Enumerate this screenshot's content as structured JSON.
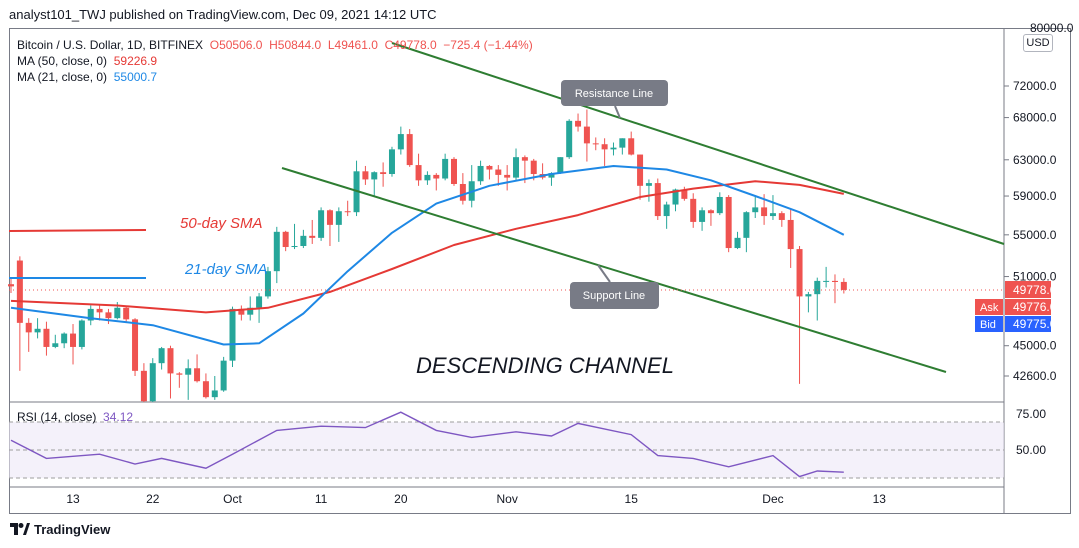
{
  "header": {
    "published": "analyst101_TWJ published on TradingView.com, Dec 09, 2021 14:12 UTC"
  },
  "legend": {
    "symbol": "Bitcoin / U.S. Dollar, 1D, BITFINEX",
    "open": "O50506.0",
    "high": "H50844.0",
    "low": "L49461.0",
    "close": "C49778.0",
    "change": "−725.4 (−1.44%)",
    "ma50_label": "MA (50, close, 0)",
    "ma50_value": "59226.9",
    "ma21_label": "MA (21, close, 0)",
    "ma21_value": "55000.7"
  },
  "rsi": {
    "label": "RSI (14, close)",
    "value": "34.12",
    "ticks": [
      "75.00",
      "50.00"
    ]
  },
  "price_axis": {
    "currency": "USD",
    "top_label": "80000.0",
    "ticks": [
      "72000.0",
      "68000.0",
      "63000.0",
      "59000.0",
      "55000.0",
      "51000.0",
      "45000.0",
      "42600.0"
    ],
    "last_price": "49778.0",
    "ask_label": "Ask",
    "ask_value": "49776.0",
    "bid_label": "Bid",
    "bid_value": "49775.0"
  },
  "time_axis": [
    "13",
    "22",
    "Oct",
    "11",
    "20",
    "Nov",
    "15",
    "Dec",
    "13"
  ],
  "annotations": {
    "sma50": "50-day SMA",
    "sma21": "21-day SMA",
    "resistance": "Resistance Line",
    "support": "Support Line",
    "channel": "DESCENDING CHANNEL"
  },
  "footer": {
    "brand": "TradingView"
  },
  "colors": {
    "up": "#26a69a",
    "down": "#ef5350",
    "ma50": "#e53935",
    "ma21": "#1e88e5",
    "channel": "#2e7d32",
    "rsi": "#7e57c2"
  },
  "chart_data": {
    "type": "candlestick",
    "title": "Bitcoin / U.S. Dollar, 1D, BITFINEX",
    "timeframe": "1D",
    "y_scale": "log",
    "ylim": [
      40000,
      80000
    ],
    "last_candle": {
      "open": 50506.0,
      "high": 50844.0,
      "low": 49461.0,
      "close": 49778.0
    },
    "candles": [
      {
        "x": "2021-09-06",
        "open": 50300,
        "high": 50900,
        "low": 49500,
        "close": 50100
      },
      {
        "x": "2021-09-07",
        "open": 52500,
        "high": 52900,
        "low": 43000,
        "close": 46900
      },
      {
        "x": "2021-09-08",
        "open": 46900,
        "high": 47300,
        "low": 44500,
        "close": 46100
      },
      {
        "x": "2021-09-09",
        "open": 46100,
        "high": 47300,
        "low": 45600,
        "close": 46400
      },
      {
        "x": "2021-09-10",
        "open": 46400,
        "high": 47000,
        "low": 44200,
        "close": 44900
      },
      {
        "x": "2021-09-11",
        "open": 44900,
        "high": 45900,
        "low": 44800,
        "close": 45200
      },
      {
        "x": "2021-09-12",
        "open": 45200,
        "high": 46100,
        "low": 44800,
        "close": 46000
      },
      {
        "x": "2021-09-13",
        "open": 46000,
        "high": 46800,
        "low": 43500,
        "close": 44900
      },
      {
        "x": "2021-09-14",
        "open": 44900,
        "high": 47200,
        "low": 44700,
        "close": 47100
      },
      {
        "x": "2021-09-15",
        "open": 47100,
        "high": 48400,
        "low": 46700,
        "close": 48100
      },
      {
        "x": "2021-09-16",
        "open": 48100,
        "high": 48400,
        "low": 47100,
        "close": 47800
      },
      {
        "x": "2021-09-17",
        "open": 47800,
        "high": 48100,
        "low": 46800,
        "close": 47300
      },
      {
        "x": "2021-09-18",
        "open": 47300,
        "high": 48700,
        "low": 47200,
        "close": 48200
      },
      {
        "x": "2021-09-19",
        "open": 48200,
        "high": 48300,
        "low": 46900,
        "close": 47200
      },
      {
        "x": "2021-09-20",
        "open": 47200,
        "high": 47300,
        "low": 42600,
        "close": 43000
      },
      {
        "x": "2021-09-21",
        "open": 43000,
        "high": 43600,
        "low": 39600,
        "close": 40700
      },
      {
        "x": "2021-09-22",
        "open": 40700,
        "high": 44000,
        "low": 40600,
        "close": 43600
      },
      {
        "x": "2021-09-23",
        "open": 43600,
        "high": 44900,
        "low": 43100,
        "close": 44800
      },
      {
        "x": "2021-09-24",
        "open": 44800,
        "high": 45000,
        "low": 40900,
        "close": 42800
      },
      {
        "x": "2021-09-25",
        "open": 42800,
        "high": 42900,
        "low": 41700,
        "close": 42700
      },
      {
        "x": "2021-09-26",
        "open": 42700,
        "high": 43900,
        "low": 40800,
        "close": 43200
      },
      {
        "x": "2021-09-27",
        "open": 43200,
        "high": 44300,
        "low": 42100,
        "close": 42200
      },
      {
        "x": "2021-09-28",
        "open": 42200,
        "high": 42800,
        "low": 40900,
        "close": 41000
      },
      {
        "x": "2021-09-29",
        "open": 41000,
        "high": 42600,
        "low": 40800,
        "close": 41500
      },
      {
        "x": "2021-09-30",
        "open": 41500,
        "high": 44100,
        "low": 41400,
        "close": 43800
      },
      {
        "x": "2021-10-01",
        "open": 43800,
        "high": 48300,
        "low": 43300,
        "close": 48100
      },
      {
        "x": "2021-10-02",
        "open": 48100,
        "high": 48400,
        "low": 47100,
        "close": 47600
      },
      {
        "x": "2021-10-03",
        "open": 47600,
        "high": 49200,
        "low": 47100,
        "close": 48200
      },
      {
        "x": "2021-10-04",
        "open": 48200,
        "high": 49500,
        "low": 46900,
        "close": 49200
      },
      {
        "x": "2021-10-05",
        "open": 49200,
        "high": 51900,
        "low": 49000,
        "close": 51500
      },
      {
        "x": "2021-10-06",
        "open": 51500,
        "high": 55800,
        "low": 50400,
        "close": 55300
      },
      {
        "x": "2021-10-07",
        "open": 55300,
        "high": 55400,
        "low": 53400,
        "close": 53800
      },
      {
        "x": "2021-10-08",
        "open": 53800,
        "high": 56100,
        "low": 53600,
        "close": 53900
      },
      {
        "x": "2021-10-09",
        "open": 53900,
        "high": 55500,
        "low": 53700,
        "close": 54900
      },
      {
        "x": "2021-10-10",
        "open": 54900,
        "high": 56500,
        "low": 54100,
        "close": 54700
      },
      {
        "x": "2021-10-11",
        "open": 54700,
        "high": 57800,
        "low": 54400,
        "close": 57500
      },
      {
        "x": "2021-10-12",
        "open": 57500,
        "high": 57600,
        "low": 53900,
        "close": 56000
      },
      {
        "x": "2021-10-13",
        "open": 56000,
        "high": 57800,
        "low": 54300,
        "close": 57400
      },
      {
        "x": "2021-10-14",
        "open": 57400,
        "high": 58500,
        "low": 56900,
        "close": 57300
      },
      {
        "x": "2021-10-15",
        "open": 57300,
        "high": 62900,
        "low": 56900,
        "close": 61700
      },
      {
        "x": "2021-10-16",
        "open": 61700,
        "high": 62300,
        "low": 60200,
        "close": 60800
      },
      {
        "x": "2021-10-17",
        "open": 60800,
        "high": 61700,
        "low": 58900,
        "close": 61600
      },
      {
        "x": "2021-10-18",
        "open": 61600,
        "high": 62700,
        "low": 60000,
        "close": 61400
      },
      {
        "x": "2021-10-19",
        "open": 61400,
        "high": 64500,
        "low": 61100,
        "close": 64200
      },
      {
        "x": "2021-10-20",
        "open": 64200,
        "high": 66900,
        "low": 63600,
        "close": 66000
      },
      {
        "x": "2021-10-21",
        "open": 66000,
        "high": 66600,
        "low": 62200,
        "close": 62400
      },
      {
        "x": "2021-10-22",
        "open": 62400,
        "high": 63700,
        "low": 60100,
        "close": 60700
      },
      {
        "x": "2021-10-23",
        "open": 60700,
        "high": 61700,
        "low": 60200,
        "close": 61300
      },
      {
        "x": "2021-10-24",
        "open": 61300,
        "high": 61500,
        "low": 59600,
        "close": 60900
      },
      {
        "x": "2021-10-25",
        "open": 60900,
        "high": 63700,
        "low": 60700,
        "close": 63100
      },
      {
        "x": "2021-10-26",
        "open": 63100,
        "high": 63300,
        "low": 60100,
        "close": 60300
      },
      {
        "x": "2021-10-27",
        "open": 60300,
        "high": 61500,
        "low": 58100,
        "close": 58500
      },
      {
        "x": "2021-10-28",
        "open": 58500,
        "high": 62400,
        "low": 57800,
        "close": 60600
      },
      {
        "x": "2021-10-29",
        "open": 60600,
        "high": 62900,
        "low": 60200,
        "close": 62300
      },
      {
        "x": "2021-10-30",
        "open": 62300,
        "high": 62400,
        "low": 60800,
        "close": 61900
      },
      {
        "x": "2021-10-31",
        "open": 61900,
        "high": 62400,
        "low": 60100,
        "close": 61300
      },
      {
        "x": "2021-11-01",
        "open": 61300,
        "high": 62400,
        "low": 59600,
        "close": 61000
      },
      {
        "x": "2021-11-02",
        "open": 61000,
        "high": 64300,
        "low": 60700,
        "close": 63300
      },
      {
        "x": "2021-11-03",
        "open": 63300,
        "high": 63500,
        "low": 60400,
        "close": 62900
      },
      {
        "x": "2021-11-04",
        "open": 62900,
        "high": 63100,
        "low": 60700,
        "close": 61400
      },
      {
        "x": "2021-11-05",
        "open": 61400,
        "high": 62600,
        "low": 60800,
        "close": 61000
      },
      {
        "x": "2021-11-06",
        "open": 61000,
        "high": 61600,
        "low": 60100,
        "close": 61500
      },
      {
        "x": "2021-11-07",
        "open": 61500,
        "high": 63300,
        "low": 61400,
        "close": 63300
      },
      {
        "x": "2021-11-08",
        "open": 63300,
        "high": 67800,
        "low": 63100,
        "close": 67600
      },
      {
        "x": "2021-11-09",
        "open": 67600,
        "high": 68500,
        "low": 66300,
        "close": 66900
      },
      {
        "x": "2021-11-10",
        "open": 66900,
        "high": 69000,
        "low": 62800,
        "close": 64900
      },
      {
        "x": "2021-11-11",
        "open": 64900,
        "high": 65600,
        "low": 64100,
        "close": 64800
      },
      {
        "x": "2021-11-12",
        "open": 64800,
        "high": 65500,
        "low": 62300,
        "close": 64200
      },
      {
        "x": "2021-11-13",
        "open": 64200,
        "high": 65000,
        "low": 63500,
        "close": 64400
      },
      {
        "x": "2021-11-14",
        "open": 64400,
        "high": 65500,
        "low": 63600,
        "close": 65500
      },
      {
        "x": "2021-11-15",
        "open": 65500,
        "high": 66300,
        "low": 63500,
        "close": 63600
      },
      {
        "x": "2021-11-16",
        "open": 63600,
        "high": 63600,
        "low": 58600,
        "close": 60100
      },
      {
        "x": "2021-11-17",
        "open": 60100,
        "high": 60800,
        "low": 58400,
        "close": 60400
      },
      {
        "x": "2021-11-18",
        "open": 60400,
        "high": 60900,
        "low": 56500,
        "close": 56900
      },
      {
        "x": "2021-11-19",
        "open": 56900,
        "high": 58400,
        "low": 55600,
        "close": 58100
      },
      {
        "x": "2021-11-20",
        "open": 58100,
        "high": 59800,
        "low": 57400,
        "close": 59700
      },
      {
        "x": "2021-11-21",
        "open": 59700,
        "high": 60000,
        "low": 58500,
        "close": 58700
      },
      {
        "x": "2021-11-22",
        "open": 58700,
        "high": 59300,
        "low": 55700,
        "close": 56300
      },
      {
        "x": "2021-11-23",
        "open": 56300,
        "high": 57800,
        "low": 55400,
        "close": 57500
      },
      {
        "x": "2021-11-24",
        "open": 57500,
        "high": 57600,
        "low": 55900,
        "close": 57200
      },
      {
        "x": "2021-11-25",
        "open": 57200,
        "high": 59400,
        "low": 57000,
        "close": 58900
      },
      {
        "x": "2021-11-26",
        "open": 58900,
        "high": 59100,
        "low": 53300,
        "close": 53700
      },
      {
        "x": "2021-11-27",
        "open": 53700,
        "high": 55300,
        "low": 53600,
        "close": 54700
      },
      {
        "x": "2021-11-28",
        "open": 54700,
        "high": 57400,
        "low": 53300,
        "close": 57300
      },
      {
        "x": "2021-11-29",
        "open": 57300,
        "high": 58900,
        "low": 56700,
        "close": 57800
      },
      {
        "x": "2021-11-30",
        "open": 57800,
        "high": 59200,
        "low": 56000,
        "close": 56900
      },
      {
        "x": "2021-12-01",
        "open": 56900,
        "high": 59100,
        "low": 56500,
        "close": 57200
      },
      {
        "x": "2021-12-02",
        "open": 57200,
        "high": 57400,
        "low": 55800,
        "close": 56500
      },
      {
        "x": "2021-12-03",
        "open": 56500,
        "high": 57600,
        "low": 51800,
        "close": 53600
      },
      {
        "x": "2021-12-04",
        "open": 53600,
        "high": 53900,
        "low": 42000,
        "close": 49200
      },
      {
        "x": "2021-12-05",
        "open": 49200,
        "high": 49600,
        "low": 47800,
        "close": 49400
      },
      {
        "x": "2021-12-06",
        "open": 49400,
        "high": 50900,
        "low": 47100,
        "close": 50600
      },
      {
        "x": "2021-12-07",
        "open": 50600,
        "high": 51900,
        "low": 50000,
        "close": 50600
      },
      {
        "x": "2021-12-08",
        "open": 50600,
        "high": 51200,
        "low": 48600,
        "close": 50500
      },
      {
        "x": "2021-12-09",
        "open": 50506,
        "high": 50844,
        "low": 49461,
        "close": 49778
      }
    ],
    "series": [
      {
        "name": "MA (50, close, 0)",
        "points": [
          [
            "2021-09-06",
            48800
          ],
          [
            "2021-09-18",
            48400
          ],
          [
            "2021-09-28",
            47800
          ],
          [
            "2021-10-05",
            48200
          ],
          [
            "2021-10-12",
            49600
          ],
          [
            "2021-10-19",
            51700
          ],
          [
            "2021-10-26",
            54000
          ],
          [
            "2021-11-02",
            55600
          ],
          [
            "2021-11-09",
            57000
          ],
          [
            "2021-11-16",
            58900
          ],
          [
            "2021-11-22",
            59800
          ],
          [
            "2021-11-29",
            60600
          ],
          [
            "2021-12-04",
            60200
          ],
          [
            "2021-12-09",
            59227
          ]
        ]
      },
      {
        "name": "MA (21, close, 0)",
        "points": [
          [
            "2021-09-06",
            48200
          ],
          [
            "2021-09-15",
            47300
          ],
          [
            "2021-09-22",
            46700
          ],
          [
            "2021-09-30",
            45100
          ],
          [
            "2021-10-04",
            45200
          ],
          [
            "2021-10-09",
            47700
          ],
          [
            "2021-10-14",
            51500
          ],
          [
            "2021-10-19",
            55200
          ],
          [
            "2021-10-24",
            58200
          ],
          [
            "2021-10-30",
            60100
          ],
          [
            "2021-11-06",
            61400
          ],
          [
            "2021-11-13",
            62300
          ],
          [
            "2021-11-19",
            61900
          ],
          [
            "2021-11-24",
            60700
          ],
          [
            "2021-11-29",
            59000
          ],
          [
            "2021-12-04",
            57300
          ],
          [
            "2021-12-09",
            55001
          ]
        ]
      }
    ],
    "rsi": {
      "name": "RSI (14, close)",
      "ylim": [
        20,
        85
      ],
      "levels": [
        70,
        50,
        30
      ],
      "values": [
        [
          "2021-09-06",
          57
        ],
        [
          "2021-09-10",
          44
        ],
        [
          "2021-09-16",
          47
        ],
        [
          "2021-09-20",
          40
        ],
        [
          "2021-09-23",
          44
        ],
        [
          "2021-09-28",
          37
        ],
        [
          "2021-10-01",
          47
        ],
        [
          "2021-10-06",
          64
        ],
        [
          "2021-10-11",
          67
        ],
        [
          "2021-10-16",
          66
        ],
        [
          "2021-10-20",
          77
        ],
        [
          "2021-10-24",
          64
        ],
        [
          "2021-10-28",
          59
        ],
        [
          "2021-11-02",
          63
        ],
        [
          "2021-11-06",
          60
        ],
        [
          "2021-11-09",
          69
        ],
        [
          "2021-11-15",
          61
        ],
        [
          "2021-11-18",
          46
        ],
        [
          "2021-11-22",
          44
        ],
        [
          "2021-11-26",
          38
        ],
        [
          "2021-12-01",
          46
        ],
        [
          "2021-12-04",
          31
        ],
        [
          "2021-12-06",
          35
        ],
        [
          "2021-12-09",
          34.12
        ]
      ]
    }
  }
}
